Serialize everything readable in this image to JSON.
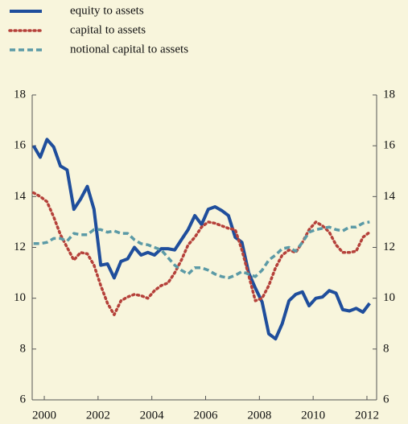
{
  "chart_data": {
    "type": "line",
    "x": [
      1999.6,
      1999.85,
      2000.1,
      2000.35,
      2000.6,
      2000.85,
      2001.1,
      2001.35,
      2001.6,
      2001.85,
      2002.1,
      2002.35,
      2002.6,
      2002.85,
      2003.1,
      2003.35,
      2003.6,
      2003.85,
      2004.1,
      2004.35,
      2004.6,
      2004.85,
      2005.1,
      2005.35,
      2005.6,
      2005.85,
      2006.1,
      2006.35,
      2006.6,
      2006.85,
      2007.1,
      2007.35,
      2007.6,
      2007.85,
      2008.1,
      2008.35,
      2008.6,
      2008.85,
      2009.1,
      2009.35,
      2009.6,
      2009.85,
      2010.1,
      2010.35,
      2010.6,
      2010.85,
      2011.1,
      2011.35,
      2011.6,
      2011.85,
      2012.1
    ],
    "series": [
      {
        "name": "equity to assets",
        "color": "#1f4e9c",
        "style": "solid",
        "values": [
          16.0,
          15.55,
          16.25,
          15.95,
          15.2,
          15.05,
          13.5,
          13.9,
          14.4,
          13.5,
          11.3,
          11.35,
          10.8,
          11.45,
          11.55,
          12.0,
          11.7,
          11.8,
          11.7,
          11.95,
          11.95,
          11.9,
          12.3,
          12.7,
          13.25,
          12.9,
          13.5,
          13.6,
          13.45,
          13.25,
          12.4,
          12.2,
          11.0,
          10.4,
          9.85,
          8.6,
          8.4,
          9.0,
          9.9,
          10.15,
          10.25,
          9.7,
          10.0,
          10.05,
          10.3,
          10.2,
          9.55,
          9.5,
          9.6,
          9.45,
          9.8
        ]
      },
      {
        "name": "capital to assets",
        "color": "#b5413a",
        "style": "dotted",
        "values": [
          14.15,
          14.0,
          13.8,
          13.2,
          12.5,
          12.0,
          11.5,
          11.8,
          11.75,
          11.3,
          10.5,
          9.8,
          9.35,
          9.9,
          10.05,
          10.15,
          10.1,
          10.0,
          10.3,
          10.5,
          10.6,
          11.0,
          11.5,
          12.1,
          12.4,
          12.8,
          13.0,
          12.95,
          12.85,
          12.75,
          12.7,
          11.9,
          10.9,
          9.9,
          10.0,
          10.5,
          11.2,
          11.7,
          11.9,
          11.8,
          12.2,
          12.7,
          13.0,
          12.85,
          12.6,
          12.1,
          11.8,
          11.8,
          11.85,
          12.4,
          12.6
        ]
      },
      {
        "name": "notional capital to assets",
        "color": "#5b9aa6",
        "style": "dashed",
        "values": [
          12.15,
          12.15,
          12.2,
          12.35,
          12.35,
          12.25,
          12.55,
          12.5,
          12.5,
          12.7,
          12.7,
          12.6,
          12.65,
          12.55,
          12.55,
          12.3,
          12.15,
          12.1,
          12.0,
          11.9,
          11.6,
          11.3,
          11.1,
          10.95,
          11.2,
          11.2,
          11.1,
          10.95,
          10.85,
          10.8,
          10.9,
          11.05,
          10.95,
          10.85,
          11.1,
          11.5,
          11.7,
          11.95,
          12.0,
          11.85,
          12.2,
          12.6,
          12.7,
          12.75,
          12.8,
          12.7,
          12.65,
          12.8,
          12.8,
          12.95,
          13.0
        ]
      }
    ],
    "xlim": [
      1999.55,
      2012.36
    ],
    "xticks": [
      2000,
      2002,
      2004,
      2006,
      2008,
      2010,
      2012
    ],
    "ylim": [
      6,
      18
    ],
    "yticks": [
      6,
      8,
      10,
      12,
      14,
      16,
      18
    ],
    "y2lim": [
      6,
      18
    ],
    "y2ticks": [
      6,
      8,
      10,
      12,
      14,
      16,
      18
    ]
  }
}
